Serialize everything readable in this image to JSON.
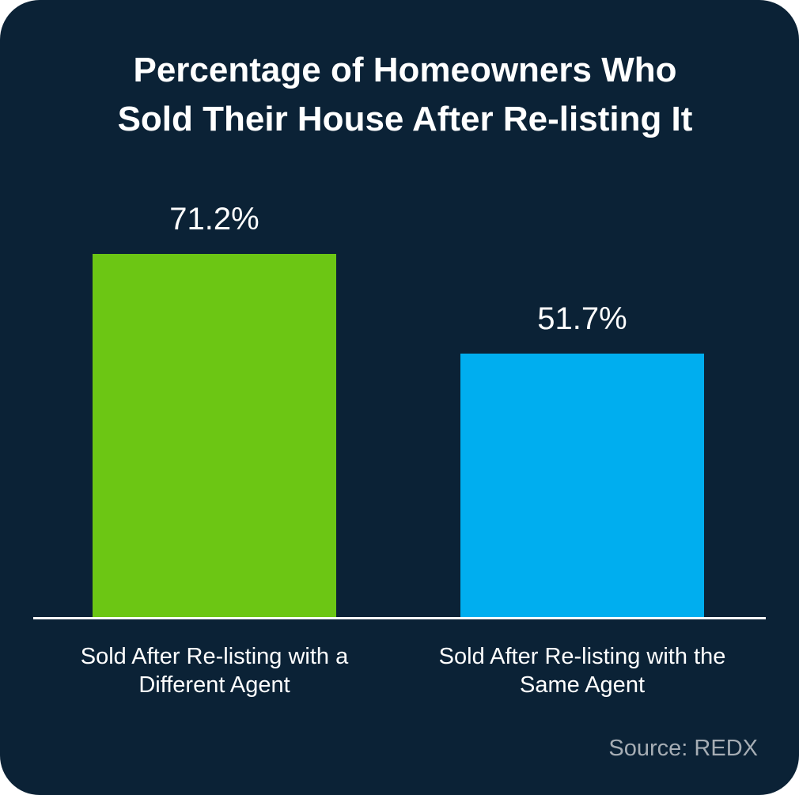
{
  "chart_data": {
    "type": "bar",
    "title": "Percentage of Homeowners Who Sold Their House After Re-listing It",
    "categories": [
      "Sold After Re-listing with a Different Agent",
      "Sold After Re-listing with the Same Agent"
    ],
    "values": [
      71.2,
      51.7
    ],
    "value_labels": [
      "71.2%",
      "51.7%"
    ],
    "colors": [
      "#6cc614",
      "#00aeef"
    ],
    "source": "Source: REDX"
  }
}
